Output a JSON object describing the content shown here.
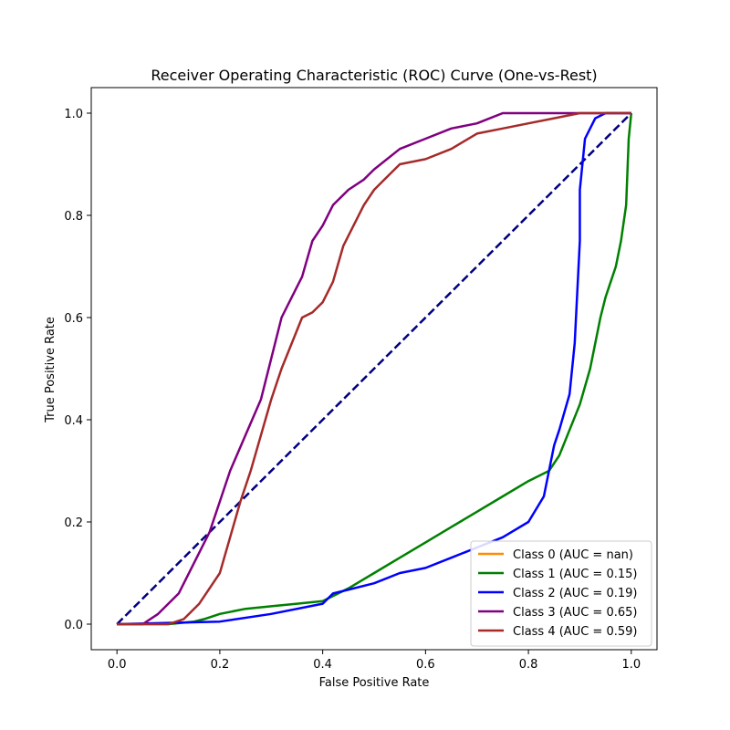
{
  "chart_data": {
    "type": "line",
    "title": "Receiver Operating Characteristic (ROC) Curve (One-vs-Rest)",
    "xlabel": "False Positive Rate",
    "ylabel": "True Positive Rate",
    "xlim": [
      -0.05,
      1.05
    ],
    "ylim": [
      -0.05,
      1.05
    ],
    "xticks": [
      0.0,
      0.2,
      0.4,
      0.6,
      0.8,
      1.0
    ],
    "yticks": [
      0.0,
      0.2,
      0.4,
      0.6,
      0.8,
      1.0
    ],
    "xtick_labels": [
      "0.0",
      "0.2",
      "0.4",
      "0.6",
      "0.8",
      "1.0"
    ],
    "ytick_labels": [
      "0.0",
      "0.2",
      "0.4",
      "0.6",
      "0.8",
      "1.0"
    ],
    "grid": false,
    "legend_position": "lower-right",
    "reference_line": {
      "x": [
        0,
        1
      ],
      "y": [
        0,
        1
      ],
      "color": "#000080",
      "style": "dashed"
    },
    "series": [
      {
        "name": "Class 0 (AUC = nan)",
        "color": "#ff8c00",
        "x": [],
        "y": []
      },
      {
        "name": "Class 1 (AUC = 0.15)",
        "color": "#008000",
        "x": [
          0.0,
          0.1,
          0.15,
          0.17,
          0.2,
          0.25,
          0.3,
          0.35,
          0.4,
          0.45,
          0.5,
          0.55,
          0.6,
          0.65,
          0.7,
          0.75,
          0.8,
          0.84,
          0.86,
          0.88,
          0.9,
          0.92,
          0.93,
          0.94,
          0.95,
          0.96,
          0.97,
          0.98,
          0.99,
          0.995,
          1.0,
          1.0
        ],
        "y": [
          0.0,
          0.0,
          0.005,
          0.01,
          0.02,
          0.03,
          0.035,
          0.04,
          0.045,
          0.07,
          0.1,
          0.13,
          0.16,
          0.19,
          0.22,
          0.25,
          0.28,
          0.3,
          0.33,
          0.38,
          0.43,
          0.5,
          0.55,
          0.6,
          0.64,
          0.67,
          0.7,
          0.75,
          0.82,
          0.95,
          1.0,
          1.0
        ]
      },
      {
        "name": "Class 2 (AUC = 0.19)",
        "color": "#0000ff",
        "x": [
          0.0,
          0.2,
          0.3,
          0.4,
          0.42,
          0.5,
          0.55,
          0.6,
          0.65,
          0.7,
          0.75,
          0.8,
          0.83,
          0.85,
          0.86,
          0.88,
          0.89,
          0.9,
          0.9,
          0.91,
          0.93,
          0.95,
          1.0
        ],
        "y": [
          0.0,
          0.005,
          0.02,
          0.04,
          0.06,
          0.08,
          0.1,
          0.11,
          0.13,
          0.15,
          0.17,
          0.2,
          0.25,
          0.35,
          0.38,
          0.45,
          0.55,
          0.75,
          0.85,
          0.95,
          0.99,
          1.0,
          1.0
        ]
      },
      {
        "name": "Class 3 (AUC = 0.65)",
        "color": "#800080",
        "x": [
          0.0,
          0.05,
          0.08,
          0.12,
          0.15,
          0.18,
          0.2,
          0.22,
          0.25,
          0.28,
          0.3,
          0.32,
          0.34,
          0.36,
          0.38,
          0.4,
          0.42,
          0.45,
          0.48,
          0.5,
          0.55,
          0.6,
          0.65,
          0.7,
          0.75,
          0.8,
          0.9,
          1.0
        ],
        "y": [
          0.0,
          0.0,
          0.02,
          0.06,
          0.12,
          0.18,
          0.24,
          0.3,
          0.37,
          0.44,
          0.52,
          0.6,
          0.64,
          0.68,
          0.75,
          0.78,
          0.82,
          0.85,
          0.87,
          0.89,
          0.93,
          0.95,
          0.97,
          0.98,
          1.0,
          1.0,
          1.0,
          1.0
        ]
      },
      {
        "name": "Class 4 (AUC = 0.59)",
        "color": "#a52a2a",
        "x": [
          0.0,
          0.1,
          0.13,
          0.16,
          0.2,
          0.22,
          0.24,
          0.26,
          0.28,
          0.3,
          0.32,
          0.34,
          0.36,
          0.38,
          0.4,
          0.42,
          0.44,
          0.46,
          0.48,
          0.5,
          0.52,
          0.55,
          0.6,
          0.65,
          0.7,
          0.75,
          0.8,
          0.85,
          0.9,
          0.95,
          1.0
        ],
        "y": [
          0.0,
          0.0,
          0.01,
          0.04,
          0.1,
          0.17,
          0.24,
          0.3,
          0.37,
          0.44,
          0.5,
          0.55,
          0.6,
          0.61,
          0.63,
          0.67,
          0.74,
          0.78,
          0.82,
          0.85,
          0.87,
          0.9,
          0.91,
          0.93,
          0.96,
          0.97,
          0.98,
          0.99,
          1.0,
          1.0,
          1.0
        ]
      }
    ]
  }
}
